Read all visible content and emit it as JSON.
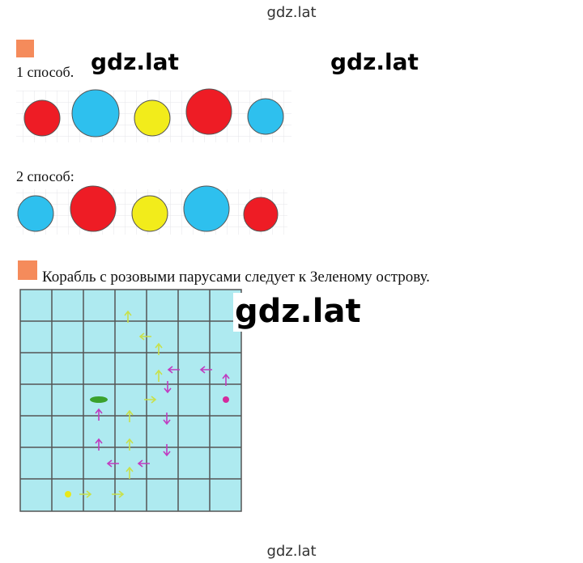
{
  "header": {
    "watermark": "gdz.lat"
  },
  "method1": {
    "label": "1 способ."
  },
  "method2": {
    "label": "2 способ:"
  },
  "task": {
    "text": "Корабль с розовыми парусами следует к Зеленому острову."
  },
  "watermarks": [
    "gdz.lat",
    "gdz.lat",
    "gdz.lat"
  ],
  "footer": {
    "watermark": "gdz.lat"
  }
}
